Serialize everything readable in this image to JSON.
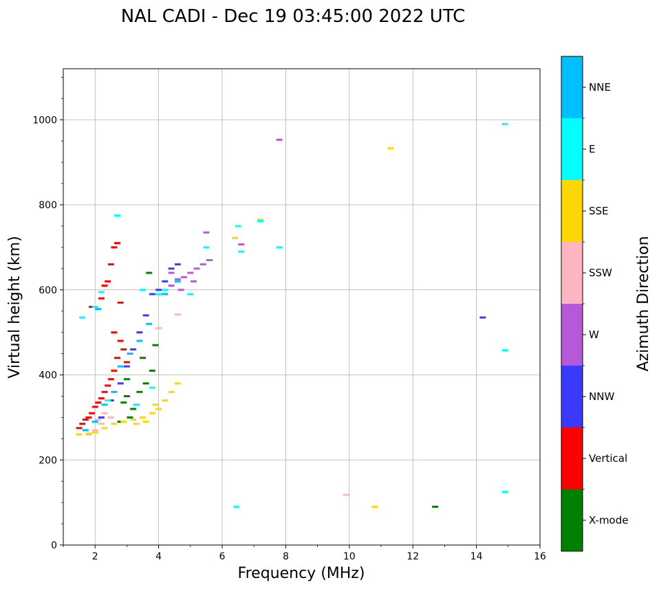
{
  "chart_data": {
    "type": "scatter",
    "title": "NAL CADI - Dec 19 03:45:00 2022 UTC",
    "xlabel": "Frequency (MHz)",
    "ylabel": "Virtual height (km)",
    "xlim": [
      1,
      16
    ],
    "ylim": [
      0,
      1120
    ],
    "xticks": [
      2,
      4,
      6,
      8,
      10,
      12,
      14,
      16
    ],
    "yticks": [
      0,
      200,
      400,
      600,
      800,
      1000
    ],
    "grid": true,
    "colorbar": {
      "label": "Azimuth Direction",
      "categories": [
        "X-mode",
        "Vertical",
        "NNW",
        "W",
        "SSW",
        "SSE",
        "E",
        "NNE"
      ],
      "colors": [
        "#008000",
        "#ff0000",
        "#3a3aff",
        "#b659d8",
        "#ffb6c1",
        "#ffd700",
        "#00ffff",
        "#00bfff"
      ]
    },
    "series": [
      {
        "name": "X-mode",
        "points": [
          [
            2.9,
            335
          ],
          [
            3.0,
            350
          ],
          [
            3.1,
            300
          ],
          [
            3.2,
            320
          ],
          [
            3.4,
            360
          ],
          [
            3.6,
            380
          ],
          [
            3.8,
            410
          ],
          [
            3.9,
            470
          ],
          [
            3.5,
            440
          ],
          [
            3.7,
            640
          ],
          [
            3.3,
            330
          ],
          [
            3.0,
            390
          ],
          [
            2.8,
            290
          ],
          [
            12.7,
            90
          ]
        ]
      },
      {
        "name": "Vertical",
        "points": [
          [
            1.5,
            275
          ],
          [
            1.6,
            285
          ],
          [
            1.7,
            295
          ],
          [
            1.8,
            300
          ],
          [
            1.9,
            310
          ],
          [
            2.0,
            325
          ],
          [
            2.1,
            335
          ],
          [
            2.2,
            345
          ],
          [
            2.3,
            360
          ],
          [
            2.4,
            375
          ],
          [
            2.5,
            390
          ],
          [
            2.6,
            410
          ],
          [
            2.7,
            440
          ],
          [
            2.8,
            480
          ],
          [
            2.5,
            660
          ],
          [
            2.6,
            700
          ],
          [
            2.7,
            710
          ],
          [
            2.3,
            610
          ],
          [
            2.2,
            580
          ],
          [
            1.9,
            560
          ],
          [
            2.8,
            570
          ],
          [
            2.9,
            460
          ],
          [
            3.0,
            430
          ],
          [
            2.4,
            620
          ],
          [
            2.6,
            500
          ]
        ]
      },
      {
        "name": "NNW",
        "points": [
          [
            2.2,
            300
          ],
          [
            2.5,
            340
          ],
          [
            2.8,
            380
          ],
          [
            3.0,
            420
          ],
          [
            3.2,
            460
          ],
          [
            3.4,
            500
          ],
          [
            3.6,
            540
          ],
          [
            3.8,
            590
          ],
          [
            4.0,
            600
          ],
          [
            4.2,
            620
          ],
          [
            4.4,
            650
          ],
          [
            4.6,
            660
          ],
          [
            14.2,
            535
          ]
        ]
      },
      {
        "name": "W",
        "points": [
          [
            4.2,
            590
          ],
          [
            4.4,
            610
          ],
          [
            4.6,
            625
          ],
          [
            4.8,
            630
          ],
          [
            5.0,
            640
          ],
          [
            5.2,
            650
          ],
          [
            5.4,
            660
          ],
          [
            5.6,
            670
          ],
          [
            5.5,
            735
          ],
          [
            6.6,
            707
          ],
          [
            7.8,
            953
          ],
          [
            4.4,
            640
          ],
          [
            4.7,
            600
          ],
          [
            5.1,
            620
          ]
        ]
      },
      {
        "name": "SSW",
        "points": [
          [
            1.8,
            260
          ],
          [
            2.0,
            270
          ],
          [
            2.2,
            285
          ],
          [
            2.5,
            300
          ],
          [
            2.3,
            310
          ],
          [
            2.1,
            295
          ],
          [
            9.9,
            118
          ],
          [
            4.0,
            510
          ],
          [
            4.6,
            542
          ]
        ]
      },
      {
        "name": "SSE",
        "points": [
          [
            1.5,
            260
          ],
          [
            1.8,
            262
          ],
          [
            2.0,
            265
          ],
          [
            2.3,
            275
          ],
          [
            2.6,
            285
          ],
          [
            2.9,
            290
          ],
          [
            3.2,
            295
          ],
          [
            3.5,
            300
          ],
          [
            3.8,
            310
          ],
          [
            4.0,
            320
          ],
          [
            4.2,
            340
          ],
          [
            4.4,
            360
          ],
          [
            4.6,
            380
          ],
          [
            3.9,
            330
          ],
          [
            3.6,
            290
          ],
          [
            3.3,
            285
          ],
          [
            6.4,
            722
          ],
          [
            7.2,
            765
          ],
          [
            10.8,
            90
          ],
          [
            11.3,
            933
          ]
        ]
      },
      {
        "name": "E",
        "points": [
          [
            1.6,
            535
          ],
          [
            2.0,
            560
          ],
          [
            2.2,
            595
          ],
          [
            2.7,
            775
          ],
          [
            3.5,
            600
          ],
          [
            4.0,
            590
          ],
          [
            4.2,
            600
          ],
          [
            5.0,
            590
          ],
          [
            5.5,
            700
          ],
          [
            6.5,
            750
          ],
          [
            6.6,
            690
          ],
          [
            7.8,
            700
          ],
          [
            7.2,
            762
          ],
          [
            6.45,
            90
          ],
          [
            14.9,
            990
          ],
          [
            14.9,
            458
          ],
          [
            14.9,
            125
          ],
          [
            3.3,
            330
          ],
          [
            3.8,
            370
          ],
          [
            2.4,
            340
          ]
        ]
      },
      {
        "name": "NNE",
        "points": [
          [
            1.7,
            270
          ],
          [
            2.0,
            290
          ],
          [
            2.3,
            330
          ],
          [
            2.6,
            360
          ],
          [
            2.8,
            420
          ],
          [
            3.1,
            450
          ],
          [
            3.4,
            480
          ],
          [
            3.7,
            520
          ],
          [
            4.2,
            590
          ],
          [
            4.6,
            620
          ],
          [
            2.1,
            555
          ]
        ]
      }
    ]
  }
}
